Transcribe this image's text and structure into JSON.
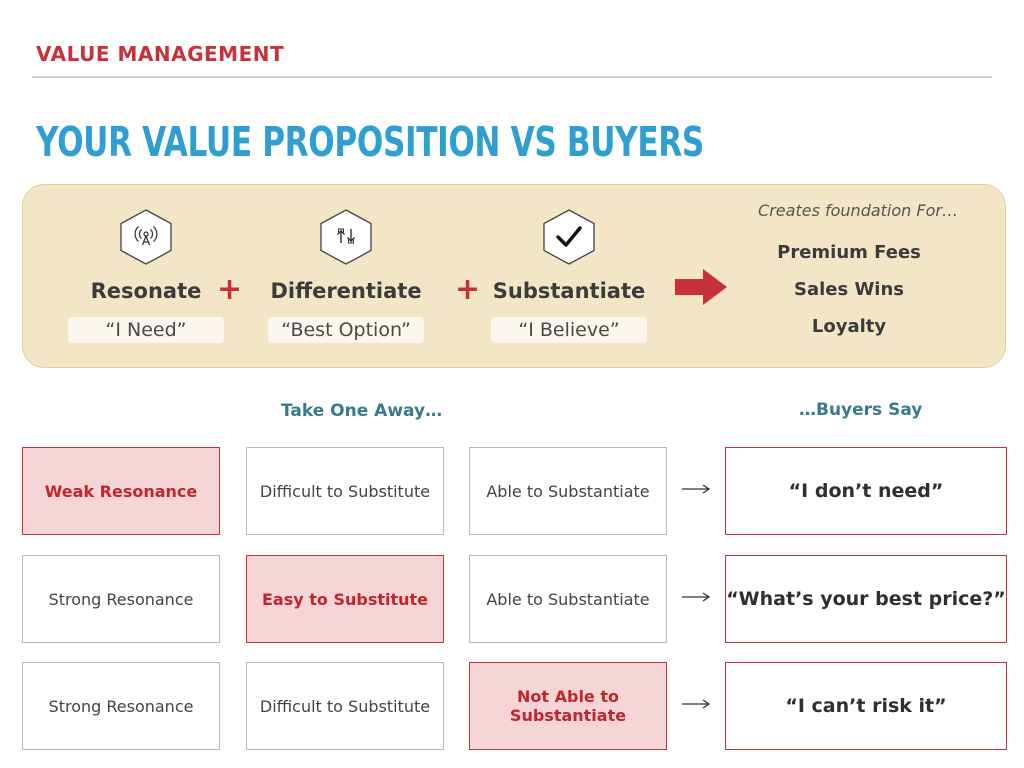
{
  "header": {
    "section": "VALUE MANAGEMENT",
    "title": "YOUR VALUE PROPOSITION VS BUYERS"
  },
  "pillars": [
    {
      "name": "Resonate",
      "quote": "“I Need”",
      "icon": "antenna-icon"
    },
    {
      "name": "Differentiate",
      "quote": "“Best Option”",
      "icon": "swap-arrows-icon"
    },
    {
      "name": "Substantiate",
      "quote": "“I Believe”",
      "icon": "checkmark-icon"
    }
  ],
  "operators": {
    "plus": "+"
  },
  "foundation": {
    "intro": "Creates foundation For…",
    "items": [
      "Premium Fees",
      "Sales Wins",
      "Loyalty"
    ]
  },
  "table": {
    "left_heading": "Take One Away…",
    "right_heading": "…Buyers Say",
    "rows": [
      {
        "cells": [
          "Weak Resonance",
          "Difficult to Substitute",
          "Able to Substantiate"
        ],
        "highlight": 0,
        "say": "“I don’t need”"
      },
      {
        "cells": [
          "Strong Resonance",
          "Easy to Substitute",
          "Able to Substantiate"
        ],
        "highlight": 1,
        "say": "“What’s your best price?”"
      },
      {
        "cells": [
          "Strong Resonance",
          "Difficult to Substitute",
          "Not Able to Substantiate"
        ],
        "highlight": 2,
        "say": "“I can’t risk it”"
      }
    ]
  },
  "colors": {
    "accent_red": "#c8313a",
    "title_blue": "#2f9ed0",
    "heading_teal": "#3a7a8c",
    "panel_bg": "#f3e6c7",
    "highlight_bg": "#f6d5d6"
  }
}
